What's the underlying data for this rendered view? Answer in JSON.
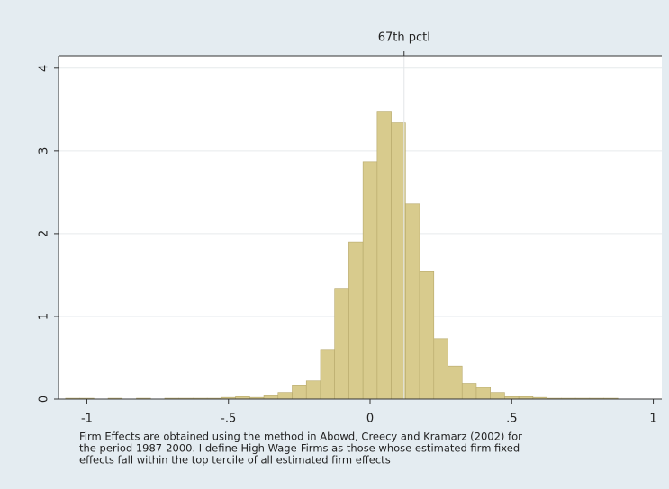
{
  "chart_data": {
    "type": "histogram",
    "bins": [
      -1.075,
      -1.025,
      -0.975,
      -0.925,
      -0.875,
      -0.825,
      -0.775,
      -0.725,
      -0.675,
      -0.625,
      -0.575,
      -0.525,
      -0.475,
      -0.425,
      -0.375,
      -0.325,
      -0.275,
      -0.225,
      -0.175,
      -0.125,
      -0.075,
      -0.025,
      0.025,
      0.075,
      0.125,
      0.175,
      0.225,
      0.275,
      0.325,
      0.375,
      0.425,
      0.475,
      0.525,
      0.575,
      0.625,
      0.675,
      0.725,
      0.775,
      0.825,
      0.875,
      0.925,
      0.975,
      1.025
    ],
    "values": [
      0.01,
      0.01,
      0,
      0.01,
      0,
      0.01,
      0,
      0.01,
      0.01,
      0.01,
      0.01,
      0.02,
      0.03,
      0.02,
      0.05,
      0.08,
      0.17,
      0.22,
      0.6,
      1.34,
      1.9,
      2.87,
      3.47,
      3.34,
      2.36,
      1.54,
      0.73,
      0.4,
      0.19,
      0.14,
      0.08,
      0.03,
      0.03,
      0.02,
      0.01,
      0.01,
      0.01,
      0.01,
      0.01,
      0,
      0,
      0
    ],
    "color": "#d8cb8d",
    "xlim": [
      -1.1,
      1.03
    ],
    "ylim": [
      0,
      4.15
    ],
    "xticks": [
      {
        "value": -1,
        "label": "-1"
      },
      {
        "value": -0.5,
        "label": "-.5"
      },
      0,
      {
        "value": 0.5,
        "label": ".5"
      },
      1
    ],
    "yticks": [
      0,
      1,
      2,
      3,
      4
    ],
    "grid": true,
    "reference_line": {
      "value": 0.12,
      "label": "67th pctl"
    },
    "note_lines": [
      "Firm Effects are obtained using the method in Abowd, Creecy and Kramarz (2002) for",
      "the period 1987-2000. I define High-Wage-Firms as those whose estimated firm fixed",
      "effects fall within the top tercile of all estimated firm effects"
    ]
  }
}
